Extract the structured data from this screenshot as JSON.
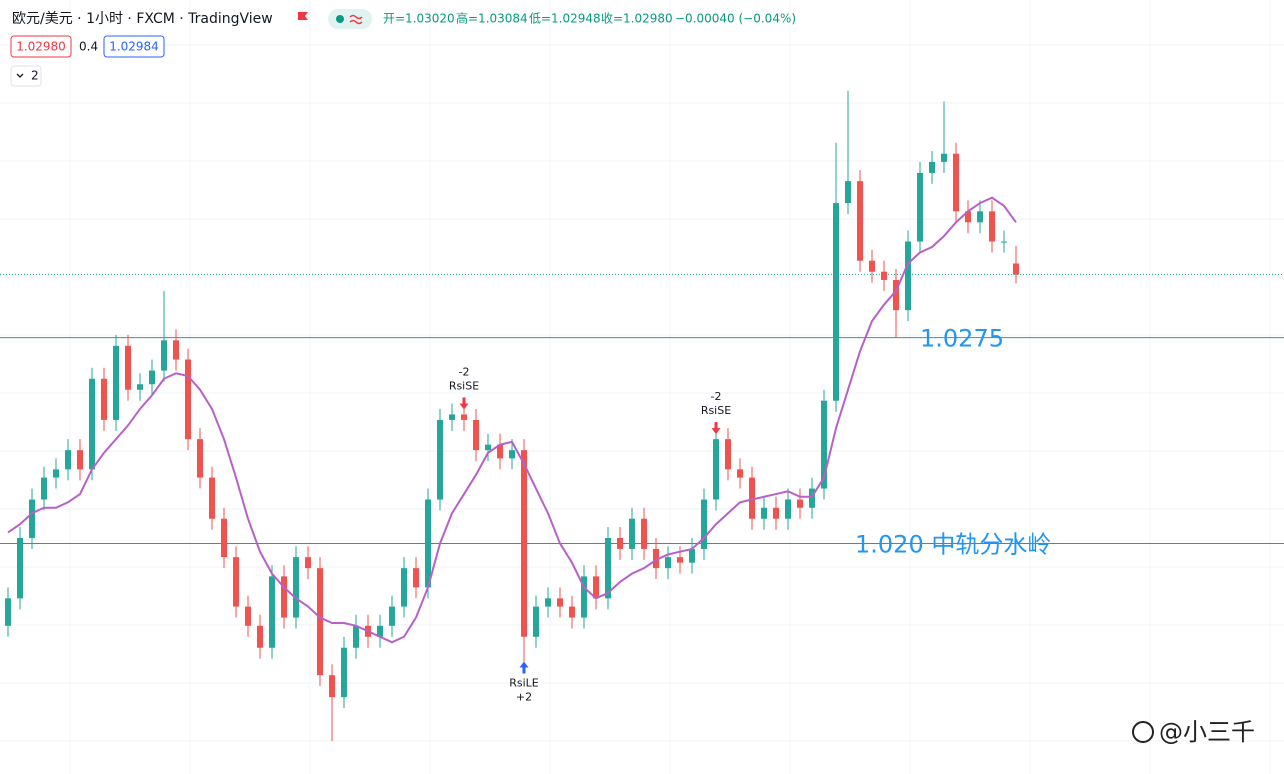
{
  "header": {
    "symbol": "欧元/美元 · 1小时 · FXCM · TradingView",
    "ohlc": [
      "开=1.03020",
      "高=1.03084",
      "低=1.02948",
      "收=1.02980"
    ],
    "change": "−0.00040 (−0.04%)",
    "bid": "1.02980",
    "spread": "0.4",
    "ask": "1.02984",
    "indicators": "2"
  },
  "chart_data": {
    "type": "candlestick",
    "ylim": [
      1.0116,
      1.0398
    ],
    "up_color": "#26a69a",
    "down_color": "#ef5350",
    "open": [
      1.017,
      1.018,
      1.0202,
      1.0216,
      1.0224,
      1.0227,
      1.0234,
      1.0227,
      1.026,
      1.0245,
      1.0272,
      1.0256,
      1.0258,
      1.0263,
      1.0274,
      1.0267,
      1.0238,
      1.0224,
      1.0209,
      1.0195,
      1.0177,
      1.017,
      1.0162,
      1.0188,
      1.0173,
      1.0195,
      1.0191,
      1.0152,
      1.0144,
      1.0162,
      1.017,
      1.0166,
      1.017,
      1.0177,
      1.0191,
      1.0184,
      1.0216,
      1.0245,
      1.0247,
      1.0245,
      1.0234,
      1.0236,
      1.0231,
      1.0234,
      1.0166,
      1.0177,
      1.018,
      1.0177,
      1.0173,
      1.0188,
      1.018,
      1.0202,
      1.0198,
      1.0209,
      1.0198,
      1.0191,
      1.0195,
      1.0193,
      1.0198,
      1.0216,
      1.0238,
      1.0227,
      1.0224,
      1.0209,
      1.0213,
      1.0209,
      1.0216,
      1.0213,
      1.022,
      1.0252,
      1.0324,
      1.0332,
      1.0303,
      1.0299,
      1.0296,
      1.0285,
      1.031,
      1.0335,
      1.0339,
      1.0342,
      1.0321,
      1.0317,
      1.0321,
      1.031,
      1.0302
    ],
    "high": [
      1.0184,
      1.0206,
      1.022,
      1.0228,
      1.0231,
      1.0238,
      1.0238,
      1.0264,
      1.0264,
      1.0276,
      1.0276,
      1.0262,
      1.0267,
      1.0292,
      1.0278,
      1.0271,
      1.0242,
      1.0228,
      1.0213,
      1.0199,
      1.0181,
      1.0174,
      1.0192,
      1.0192,
      1.0199,
      1.0199,
      1.0195,
      1.0156,
      1.0166,
      1.0174,
      1.0174,
      1.0174,
      1.0181,
      1.0195,
      1.0195,
      1.022,
      1.0249,
      1.0251,
      1.0251,
      1.0249,
      1.024,
      1.024,
      1.0238,
      1.0238,
      1.0181,
      1.0184,
      1.0184,
      1.0181,
      1.0192,
      1.0192,
      1.0206,
      1.0206,
      1.0213,
      1.0213,
      1.0202,
      1.0199,
      1.0199,
      1.0202,
      1.022,
      1.0242,
      1.0242,
      1.0231,
      1.0228,
      1.0217,
      1.0217,
      1.022,
      1.022,
      1.0224,
      1.0256,
      1.0346,
      1.0365,
      1.0336,
      1.0307,
      1.0303,
      1.03,
      1.0314,
      1.0339,
      1.0343,
      1.0361,
      1.0346,
      1.0325,
      1.0325,
      1.0325,
      1.0314,
      1.03084
    ],
    "low": [
      1.0166,
      1.0176,
      1.0198,
      1.0212,
      1.022,
      1.0223,
      1.0223,
      1.0223,
      1.0241,
      1.0241,
      1.0252,
      1.0252,
      1.0254,
      1.0259,
      1.0263,
      1.0234,
      1.022,
      1.0205,
      1.0191,
      1.0173,
      1.0166,
      1.0158,
      1.0158,
      1.0169,
      1.0169,
      1.0187,
      1.0148,
      1.0128,
      1.014,
      1.0158,
      1.0162,
      1.0162,
      1.0166,
      1.0173,
      1.018,
      1.018,
      1.0212,
      1.0241,
      1.0241,
      1.023,
      1.023,
      1.0227,
      1.0227,
      1.0157,
      1.0162,
      1.0173,
      1.0173,
      1.0169,
      1.0169,
      1.0176,
      1.0176,
      1.0194,
      1.0194,
      1.0194,
      1.0187,
      1.0187,
      1.0189,
      1.0189,
      1.0194,
      1.0212,
      1.0223,
      1.022,
      1.0205,
      1.0205,
      1.0205,
      1.0205,
      1.0209,
      1.0209,
      1.0216,
      1.0248,
      1.032,
      1.0299,
      1.0295,
      1.0292,
      1.0275,
      1.0281,
      1.0306,
      1.0331,
      1.0335,
      1.0317,
      1.0313,
      1.0313,
      1.0306,
      1.0306,
      1.02948
    ],
    "close": [
      1.018,
      1.0202,
      1.0216,
      1.0224,
      1.0227,
      1.0234,
      1.0227,
      1.026,
      1.0245,
      1.0272,
      1.0256,
      1.0258,
      1.0263,
      1.0274,
      1.0267,
      1.0238,
      1.0224,
      1.0209,
      1.0195,
      1.0177,
      1.017,
      1.0162,
      1.0188,
      1.0173,
      1.0195,
      1.0191,
      1.0152,
      1.0144,
      1.0162,
      1.017,
      1.0166,
      1.017,
      1.0177,
      1.0191,
      1.0184,
      1.0216,
      1.0245,
      1.0247,
      1.0245,
      1.0234,
      1.0236,
      1.0231,
      1.0234,
      1.0166,
      1.0177,
      1.018,
      1.0177,
      1.0173,
      1.0188,
      1.018,
      1.0202,
      1.0198,
      1.0209,
      1.0198,
      1.0191,
      1.0195,
      1.0193,
      1.0198,
      1.0216,
      1.0238,
      1.0227,
      1.0224,
      1.0209,
      1.0213,
      1.0209,
      1.0216,
      1.0213,
      1.022,
      1.0252,
      1.0324,
      1.0332,
      1.0303,
      1.0299,
      1.0296,
      1.0285,
      1.031,
      1.0335,
      1.0339,
      1.0342,
      1.0321,
      1.0317,
      1.0321,
      1.031,
      1.031,
      1.0298
    ],
    "ma": {
      "color": "#b760c8",
      "values": [
        1.0204,
        1.0207,
        1.0211,
        1.0213,
        1.0213,
        1.0215,
        1.0218,
        1.0227,
        1.0233,
        1.0238,
        1.0243,
        1.0249,
        1.0254,
        1.026,
        1.0262,
        1.0261,
        1.0256,
        1.0249,
        1.0238,
        1.0224,
        1.0209,
        1.0197,
        1.0189,
        1.0184,
        1.018,
        1.0177,
        1.0173,
        1.0171,
        1.0171,
        1.017,
        1.0168,
        1.0166,
        1.0164,
        1.0166,
        1.0173,
        1.0184,
        1.02,
        1.0211,
        1.0218,
        1.0225,
        1.0233,
        1.0236,
        1.0237,
        1.0229,
        1.022,
        1.0211,
        1.02,
        1.0193,
        1.0184,
        1.018,
        1.0182,
        1.0186,
        1.0189,
        1.0191,
        1.0194,
        1.0196,
        1.0197,
        1.0198,
        1.0202,
        1.0207,
        1.0211,
        1.0215,
        1.0216,
        1.0217,
        1.0218,
        1.0219,
        1.0217,
        1.0217,
        1.0224,
        1.0242,
        1.0256,
        1.027,
        1.0281,
        1.0287,
        1.0292,
        1.0302,
        1.0306,
        1.0308,
        1.0312,
        1.0317,
        1.0321,
        1.0324,
        1.0326,
        1.0323,
        1.0317
      ]
    },
    "hlines": [
      {
        "value": 1.0275,
        "label": "1.0275"
      },
      {
        "value": 1.02,
        "label": "1.020 中轨分水岭"
      }
    ],
    "hline_color": "#2a97a8",
    "label_color": "#2196f3",
    "last_price": 1.0298,
    "signals": [
      {
        "index": 38,
        "side": "short",
        "label": "RsiSE",
        "qty": "-2"
      },
      {
        "index": 43,
        "side": "long",
        "label": "RsiLE",
        "qty": "+2"
      },
      {
        "index": 59,
        "side": "short",
        "label": "RsiSE",
        "qty": "-2"
      }
    ]
  },
  "watermark": "@小三千"
}
